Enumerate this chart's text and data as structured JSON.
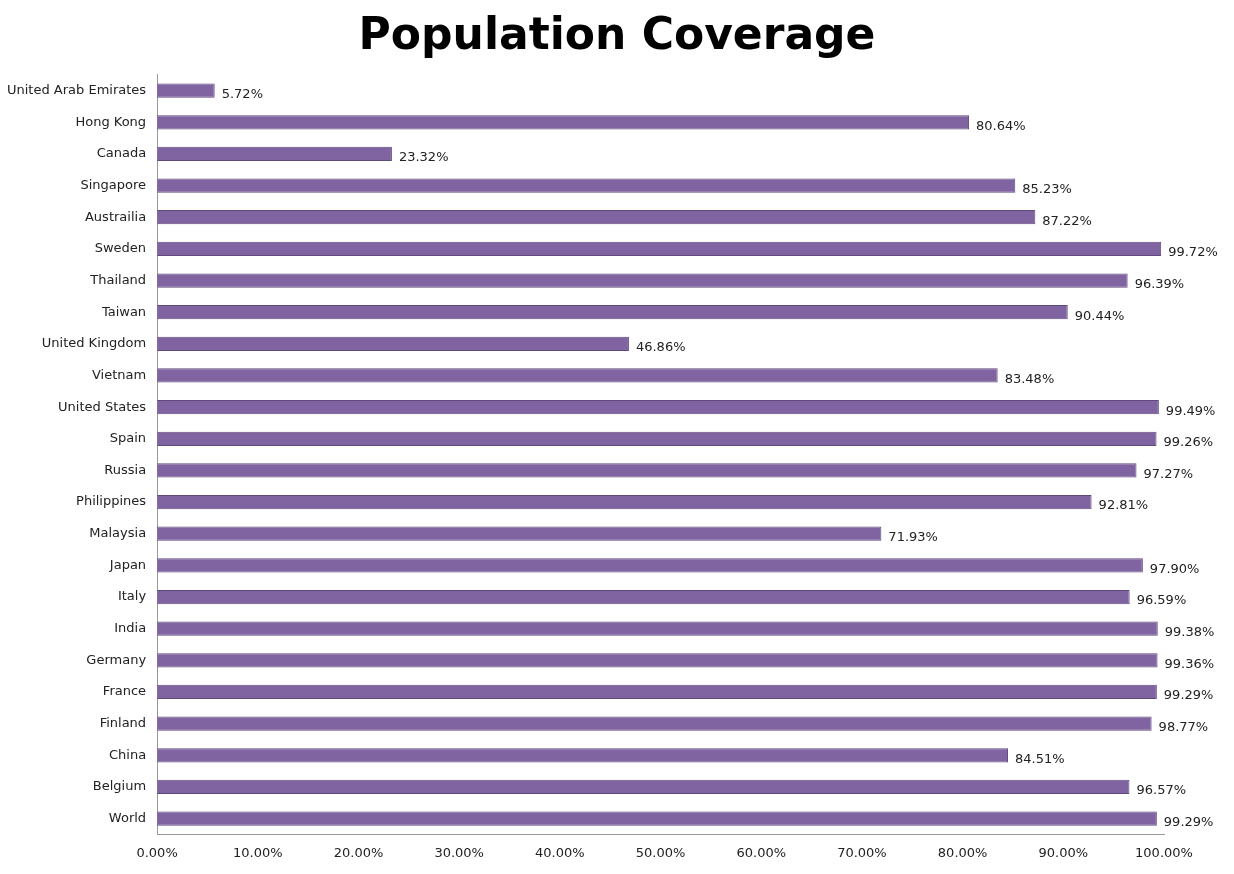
{
  "chart_data": {
    "type": "bar",
    "orientation": "horizontal",
    "title": "Population Coverage",
    "categories": [
      "United Arab Emirates",
      "Hong Kong",
      "Canada",
      "Singapore",
      "Austrailia",
      "Sweden",
      "Thailand",
      "Taiwan",
      "United Kingdom",
      "Vietnam",
      "United States",
      "Spain",
      "Russia",
      "Philippines",
      "Malaysia",
      "Japan",
      "Italy",
      "India",
      "Germany",
      "France",
      "Finland",
      "China",
      "Belgium",
      "World"
    ],
    "values": [
      5.72,
      80.64,
      23.32,
      85.23,
      87.22,
      99.72,
      96.39,
      90.44,
      46.86,
      83.48,
      99.49,
      99.26,
      97.27,
      92.81,
      71.93,
      97.9,
      96.59,
      99.38,
      99.36,
      99.29,
      98.77,
      84.51,
      96.57,
      99.29
    ],
    "value_labels": [
      "5.72%",
      "80.64%",
      "23.32%",
      "85.23%",
      "87.22%",
      "99.72%",
      "96.39%",
      "90.44%",
      "46.86%",
      "83.48%",
      "99.49%",
      "99.26%",
      "97.27%",
      "92.81%",
      "71.93%",
      "97.90%",
      "96.59%",
      "99.38%",
      "99.36%",
      "99.29%",
      "98.77%",
      "84.51%",
      "96.57%",
      "99.29%"
    ],
    "color": "#8064a2",
    "xlim": [
      0,
      100
    ],
    "xticks": [
      {
        "value": 0,
        "label": "0.00%"
      },
      {
        "value": 10,
        "label": "10.00%"
      },
      {
        "value": 20,
        "label": "20.00%"
      },
      {
        "value": 30,
        "label": "30.00%"
      },
      {
        "value": 40,
        "label": "40.00%"
      },
      {
        "value": 50,
        "label": "50.00%"
      },
      {
        "value": 60,
        "label": "60.00%"
      },
      {
        "value": 70,
        "label": "70.00%"
      },
      {
        "value": 80,
        "label": "80.00%"
      },
      {
        "value": 90,
        "label": "90.00%"
      },
      {
        "value": 100,
        "label": "100.00%"
      }
    ],
    "grid": false,
    "legend": false
  }
}
